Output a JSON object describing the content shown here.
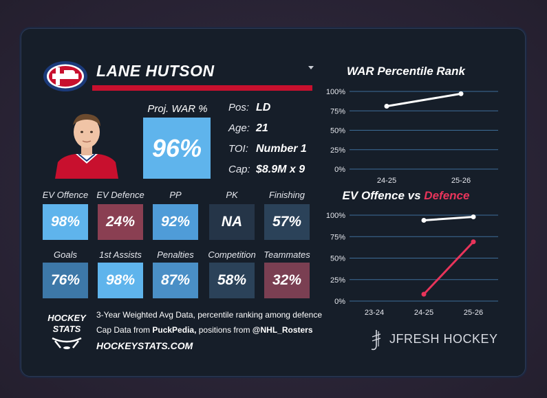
{
  "player": {
    "name": "LANE HUTSON",
    "team": "Montreal Canadiens",
    "proj_war_label": "Proj. WAR %",
    "proj_war_value": "96%",
    "info": [
      {
        "label": "Pos:",
        "value": "LD"
      },
      {
        "label": "Age:",
        "value": "21"
      },
      {
        "label": "TOI:",
        "value": "Number 1"
      },
      {
        "label": "Cap:",
        "value": "$8.9M x 9"
      }
    ]
  },
  "tiles_row1": [
    {
      "label": "EV Offence",
      "value": "98%",
      "color": "#5fb4ec"
    },
    {
      "label": "EV Defence",
      "value": "24%",
      "color": "#8a3f52"
    },
    {
      "label": "PP",
      "value": "92%",
      "color": "#4f9cd8"
    },
    {
      "label": "PK",
      "value": "NA",
      "color": "#253548"
    },
    {
      "label": "Finishing",
      "value": "57%",
      "color": "#2b4259"
    }
  ],
  "tiles_row2": [
    {
      "label": "Goals",
      "value": "76%",
      "color": "#3d78a8"
    },
    {
      "label": "1st Assists",
      "value": "98%",
      "color": "#5fb4ec"
    },
    {
      "label": "Penalties",
      "value": "87%",
      "color": "#4a8fc6"
    },
    {
      "label": "Competition",
      "value": "58%",
      "color": "#2b4259"
    },
    {
      "label": "Teammates",
      "value": "32%",
      "color": "#7a3f52"
    }
  ],
  "footer": {
    "line1": "3-Year Weighted Avg Data, percentile ranking among defence",
    "line2_pre": "Cap Data from ",
    "line2_src": "PuckPedia,",
    "line2_mid": " positions from ",
    "line2_handle": "@NHL_Rosters",
    "url": "HOCKEYSTATS.COM",
    "logo_line1": "HOCKEY",
    "logo_line2": "STATS",
    "brand": "JFRESH HOCKEY"
  },
  "colors": {
    "accent_red": "#c8102e",
    "line_red": "#e8345a",
    "grid": "#3e6f9a"
  },
  "chart_data": [
    {
      "type": "line",
      "title": "WAR Percentile Rank",
      "categories": [
        "24-25",
        "25-26"
      ],
      "series": [
        {
          "name": "WAR",
          "values": [
            81,
            97
          ],
          "color": "#ffffff"
        }
      ],
      "yticks": [
        "0%",
        "25%",
        "50%",
        "75%",
        "100%"
      ],
      "ylim": [
        0,
        100
      ]
    },
    {
      "type": "line",
      "title_part1": "EV Offence vs ",
      "title_part2": "Defence",
      "categories": [
        "23-24",
        "24-25",
        "25-26"
      ],
      "series": [
        {
          "name": "EV Offence",
          "values": [
            null,
            94,
            98
          ],
          "color": "#ffffff"
        },
        {
          "name": "EV Defence",
          "values": [
            null,
            8,
            69
          ],
          "color": "#e8345a"
        }
      ],
      "yticks": [
        "0%",
        "25%",
        "50%",
        "75%",
        "100%"
      ],
      "ylim": [
        0,
        100
      ]
    }
  ]
}
